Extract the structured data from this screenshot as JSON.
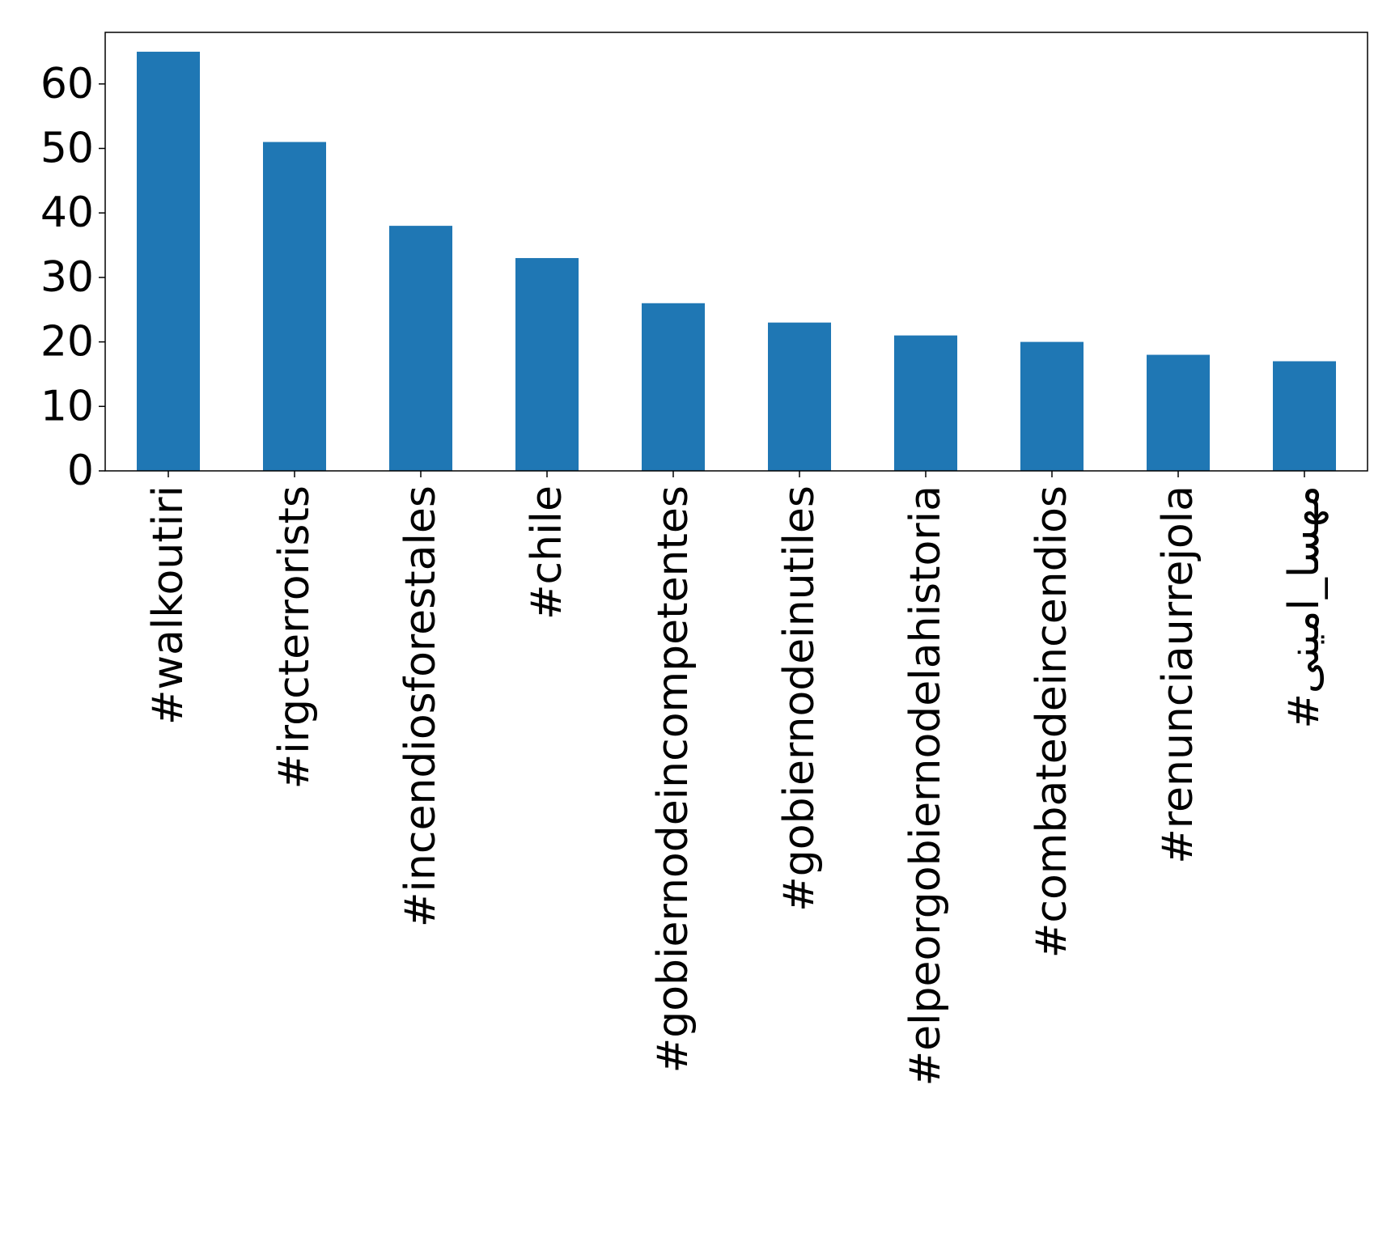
{
  "chart_data": {
    "type": "bar",
    "categories": [
      "#walkoutiri",
      "#irgcterrorists",
      "#incendiosforestales",
      "#chile",
      "#gobiernodeincompetentes",
      "#gobiernodeinutiles",
      "#elpeorgobiernodelahistoria",
      "#combatedeincendios",
      "#renunciaurrejola",
      "#مهسا_امینی"
    ],
    "values": [
      65,
      51,
      38,
      33,
      26,
      23,
      21,
      20,
      18,
      17
    ],
    "title": "",
    "xlabel": "",
    "ylabel": "",
    "ylim": [
      0,
      68
    ],
    "yticks": [
      0,
      10,
      20,
      30,
      40,
      50,
      60
    ],
    "ytick_labels": [
      "0",
      "10",
      "20",
      "30",
      "40",
      "50",
      "60"
    ],
    "grid": false,
    "legend": "none",
    "colors": {
      "bar": "#1f77b4",
      "axis": "#000000",
      "background": "#ffffff"
    }
  }
}
